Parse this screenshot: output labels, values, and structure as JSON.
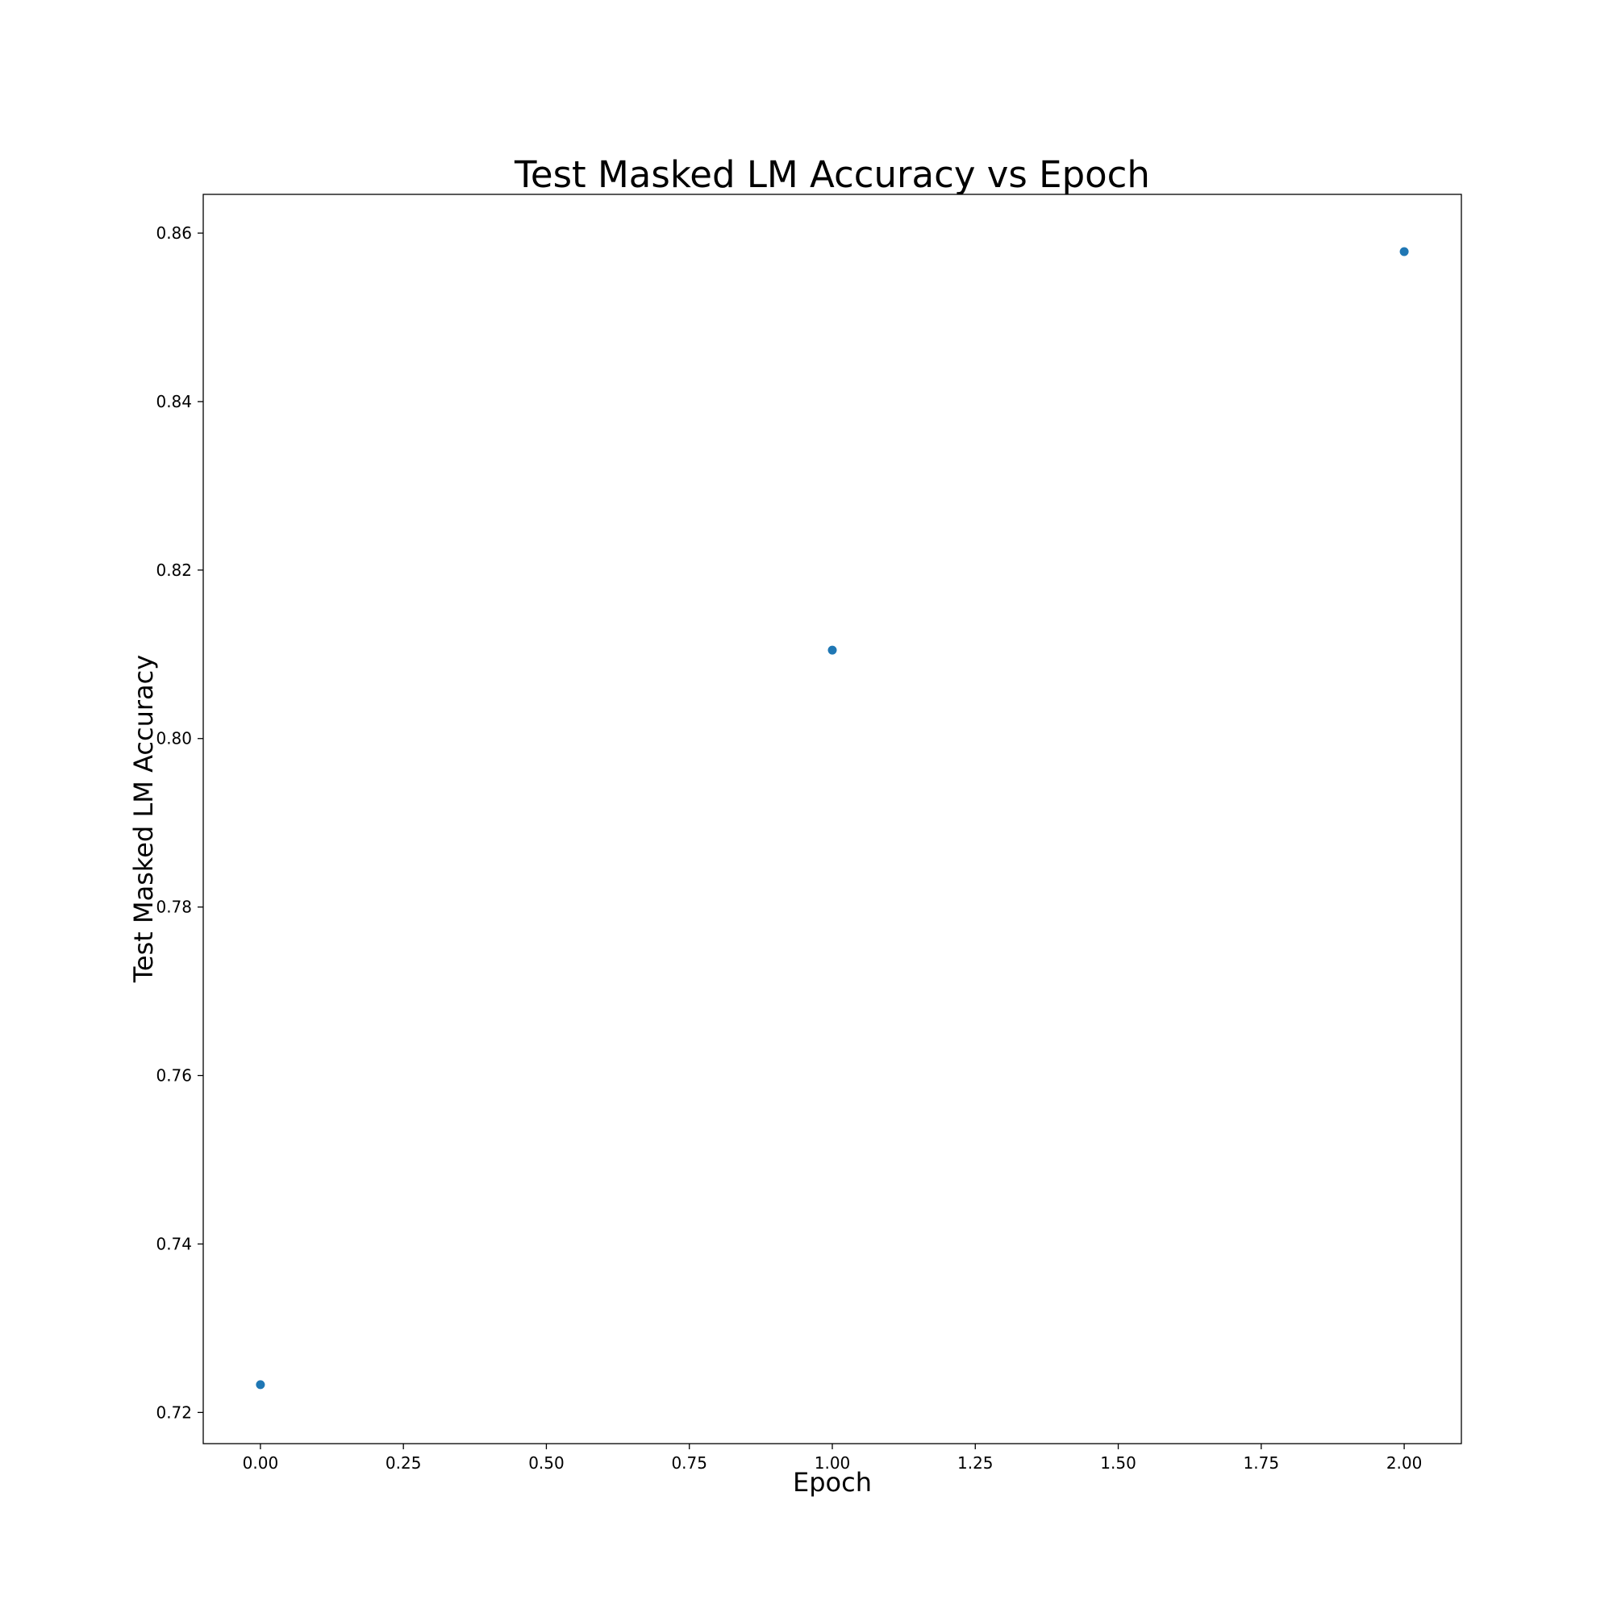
{
  "chart_data": {
    "type": "scatter",
    "title": "Test Masked LM Accuracy vs Epoch",
    "xlabel": "Epoch",
    "ylabel": "Test Masked LM Accuracy",
    "x": [
      0,
      1,
      2
    ],
    "y": [
      0.7233,
      0.8105,
      0.8578
    ],
    "xlim": [
      -0.1,
      2.1
    ],
    "ylim": [
      0.7163,
      0.8646
    ],
    "xticks": [
      0,
      0.25,
      0.5,
      0.75,
      1,
      1.25,
      1.5,
      1.75,
      2
    ],
    "xtick_labels": [
      "0.00",
      "0.25",
      "0.50",
      "0.75",
      "1.00",
      "1.25",
      "1.50",
      "1.75",
      "2.00"
    ],
    "yticks": [
      0.72,
      0.74,
      0.76,
      0.78,
      0.8,
      0.82,
      0.84,
      0.86
    ],
    "ytick_labels": [
      "0.72",
      "0.74",
      "0.76",
      "0.78",
      "0.80",
      "0.82",
      "0.84",
      "0.86"
    ],
    "grid": false,
    "marker_color": "#1f77b4"
  }
}
